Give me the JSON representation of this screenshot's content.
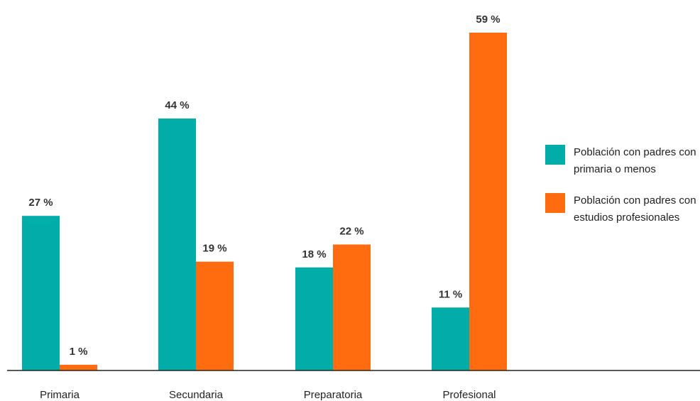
{
  "chart_data": {
    "type": "bar",
    "categories": [
      "Primaria",
      "Secundaria",
      "Preparatoria",
      "Profesional"
    ],
    "series": [
      {
        "name": "Población con padres con primaria o menos",
        "color": "#00ADA8",
        "values": [
          27,
          44,
          18,
          11
        ],
        "labels": [
          "27 %",
          "44 %",
          "18 %",
          "11 %"
        ]
      },
      {
        "name": "Población con padres con estudios profesionales",
        "color": "#FF6B0F",
        "values": [
          1,
          19,
          22,
          59
        ],
        "labels": [
          "1 %",
          "19 %",
          "22 %",
          "59 %"
        ]
      }
    ],
    "ylim": [
      0,
      59
    ],
    "grid": false,
    "legend": "right",
    "title": "",
    "xlabel": "",
    "ylabel": ""
  }
}
